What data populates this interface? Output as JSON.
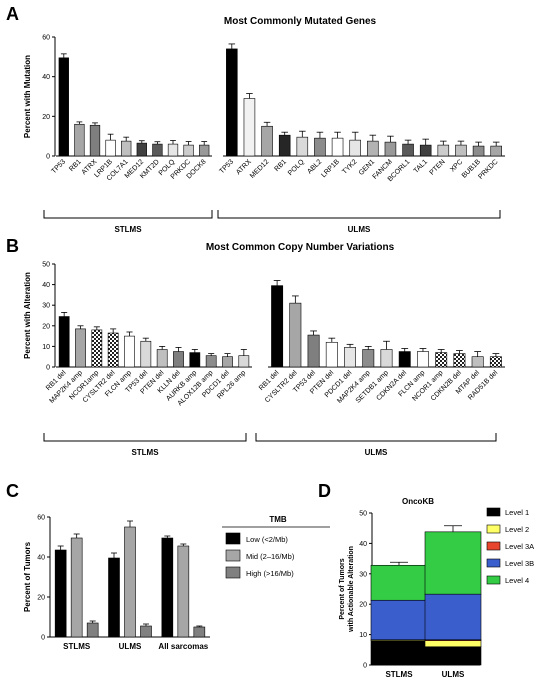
{
  "chart_data": [
    {
      "id": "A",
      "type": "bar",
      "panel_label": "A",
      "title": "Most Commonly Mutated Genes",
      "ylabel": "Percent with Mutation",
      "ylim": [
        0,
        60
      ],
      "yticks": [
        0,
        20,
        40,
        60
      ],
      "groups": [
        {
          "name": "STLMS",
          "categories": [
            "TP53",
            "RB1",
            "ATRX",
            "LRP1B",
            "COL7A1",
            "MED12",
            "KMT2D",
            "POLQ",
            "PRKDC",
            "DOCK8"
          ],
          "values": [
            49.5,
            16,
            15.5,
            8,
            7.5,
            6.5,
            6,
            6,
            5.5,
            5.5
          ],
          "errors": [
            2,
            1.2,
            1.2,
            3,
            2,
            1.2,
            1.2,
            1.8,
            1.8,
            1.8
          ],
          "fills": [
            "#000000",
            "#a6a6a6",
            "#7f7f7f",
            "#ffffff",
            "#bfbfbf",
            "#404040",
            "#595959",
            "#e6e6e6",
            "#cccccc",
            "#999999"
          ]
        },
        {
          "name": "ULMS",
          "categories": [
            "TP53",
            "ATRX",
            "MED12",
            "RB1",
            "POLQ",
            "ABL2",
            "LRP1B",
            "TYK2",
            "GEN1",
            "FANCM",
            "BCORL1",
            "TAL1",
            "PTEN",
            "XPC",
            "BUB1B",
            "PRKDC"
          ],
          "values": [
            54,
            29,
            15,
            10.5,
            9.5,
            9,
            9,
            8,
            7.5,
            7,
            6,
            5.5,
            5.5,
            5.5,
            5,
            5
          ],
          "errors": [
            2.5,
            2.5,
            2,
            1.5,
            3,
            3,
            3,
            4,
            3,
            3,
            2,
            3,
            2,
            2,
            2,
            2
          ],
          "fills": [
            "#000000",
            "#f2f2f2",
            "#a6a6a6",
            "#262626",
            "#d9d9d9",
            "#8c8c8c",
            "#ffffff",
            "#e6e6e6",
            "#b3b3b3",
            "#999999",
            "#595959",
            "#404040",
            "#cccccc",
            "#bfbfbf",
            "#8c8c8c",
            "#a6a6a6"
          ]
        }
      ]
    },
    {
      "id": "B",
      "type": "bar",
      "panel_label": "B",
      "title": "Most Common Copy Number Variations",
      "ylabel": "Percent with Alteration",
      "ylim": [
        0,
        50
      ],
      "yticks": [
        0,
        10,
        20,
        30,
        40,
        50
      ],
      "groups": [
        {
          "name": "STLMS",
          "categories": [
            "RB1 del",
            "MAP2K4 amp",
            "NCOR1amp",
            "CYSLTR2 del",
            "FLCN amp",
            "TP53 del",
            "PTEN del",
            "KLLN del",
            "AURKB amp",
            "ALOX12B amp",
            "PDCD1 del",
            "RPL26 amp"
          ],
          "values": [
            24.5,
            18.5,
            18,
            16.5,
            15,
            12.5,
            8.5,
            7.5,
            7,
            5.5,
            5,
            5.5
          ],
          "errors": [
            2,
            1.5,
            1.5,
            2,
            2,
            1.5,
            1.5,
            2,
            1.5,
            1,
            1.5,
            3
          ],
          "fills": [
            "#000000",
            "#a6a6a6",
            "checker",
            "checker",
            "#ffffff",
            "#d9d9d9",
            "#bfbfbf",
            "#7f7f7f",
            "#000000",
            "#8c8c8c",
            "#a6a6a6",
            "#d9d9d9"
          ]
        },
        {
          "name": "ULMS",
          "categories": [
            "RB1 del",
            "CYSLTR2 del",
            "TP53 del",
            "PTEN del",
            "PDCD1 del",
            "MAP2K4 amp",
            "SETDB1 amp",
            "CDKN2A del",
            "FLCN amp",
            "NCOR1 amp",
            "CDKN2B del",
            "MTAP del",
            "RAD51B del"
          ],
          "values": [
            39.5,
            31,
            15.5,
            12,
            9.5,
            8.5,
            8.5,
            7.5,
            7.5,
            7,
            6.5,
            5,
            5
          ],
          "errors": [
            2.5,
            3.5,
            2,
            2,
            1.5,
            1.5,
            4,
            1.5,
            1.5,
            1.5,
            1.5,
            2.5,
            1.5
          ],
          "fills": [
            "#000000",
            "#a6a6a6",
            "#7f7f7f",
            "#ffffff",
            "#e6e6e6",
            "#8c8c8c",
            "#d9d9d9",
            "#000000",
            "#ffffff",
            "checker",
            "checker",
            "#bfbfbf",
            "checker"
          ]
        }
      ]
    },
    {
      "id": "C",
      "type": "bar",
      "panel_label": "C",
      "title": "",
      "ylabel": "Percent of Tumors",
      "ylim": [
        0,
        60
      ],
      "yticks": [
        0,
        20,
        40,
        60
      ],
      "categories": [
        "STLMS",
        "ULMS",
        "All sarcomas"
      ],
      "legend_title": "TMB",
      "legend_position": "right",
      "series": [
        {
          "name": "Low (<2/Mb)",
          "values": [
            43.5,
            39.5,
            49.5
          ],
          "errors": [
            2,
            2.5,
            1
          ],
          "color": "#000000"
        },
        {
          "name": "Mid (2–16/Mb)",
          "values": [
            49.5,
            55,
            45.5
          ],
          "errors": [
            2,
            3,
            1
          ],
          "color": "#a6a6a6"
        },
        {
          "name": "High (>16/Mb)",
          "values": [
            7,
            5.5,
            5
          ],
          "errors": [
            1,
            1,
            0.5
          ],
          "color": "#808080"
        }
      ]
    },
    {
      "id": "D",
      "type": "bar",
      "stacked": true,
      "panel_label": "D",
      "title": "OncoKB",
      "ylabel": "Percent of Tumors with Actionable Alteration",
      "ylines": [
        "Percent of Tumors",
        "with Actionable Alteration"
      ],
      "ylim": [
        0,
        50
      ],
      "yticks": [
        0,
        10,
        20,
        30,
        40,
        50
      ],
      "categories": [
        "STLMS",
        "ULMS"
      ],
      "legend_position": "right",
      "series": [
        {
          "name": "Level 1",
          "values": [
            8,
            6
          ],
          "errors": [
            1,
            1
          ],
          "color": "#000000"
        },
        {
          "name": "Level 2",
          "values": [
            0.3,
            2
          ],
          "errors": [
            0,
            0.8
          ],
          "color": "#ffff66"
        },
        {
          "name": "Level 3A",
          "values": [
            0,
            0.3
          ],
          "errors": [
            0,
            0
          ],
          "color": "#e8452f"
        },
        {
          "name": "Level 3B",
          "values": [
            13,
            15
          ],
          "errors": [
            1,
            2
          ],
          "color": "#3a5fcd"
        },
        {
          "name": "Level 4",
          "values": [
            11.5,
            20.5
          ],
          "errors": [
            1,
            2
          ],
          "color": "#33cc44"
        }
      ]
    }
  ]
}
